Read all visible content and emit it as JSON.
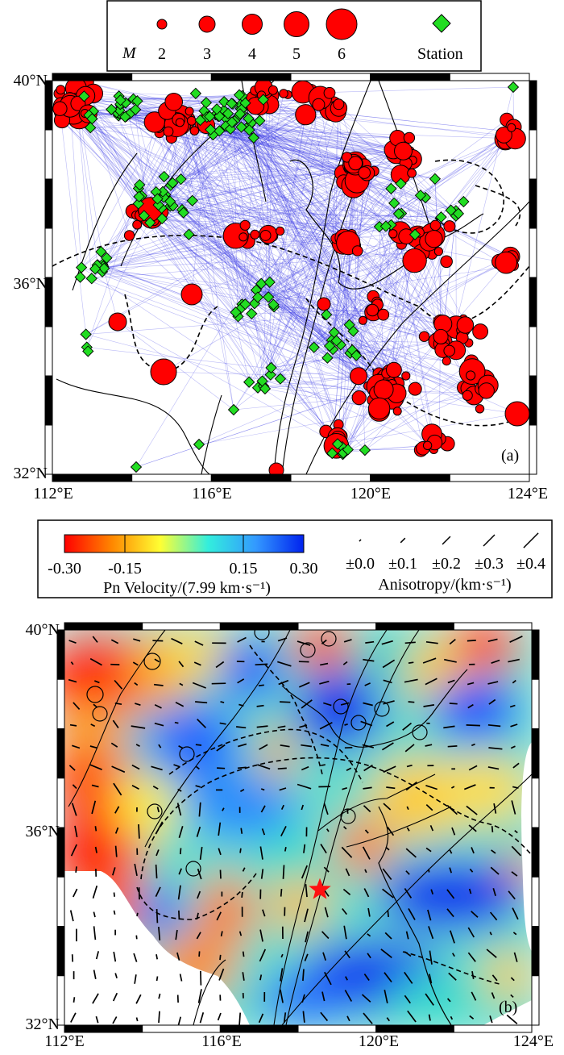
{
  "magnitude_legend": {
    "symbol": "M",
    "labels": [
      "2",
      "3",
      "4",
      "5",
      "6"
    ],
    "station_label": "Station",
    "event_color": "#ff0000",
    "station_color": "#22dd22"
  },
  "panel_a": {
    "tag": "(a)",
    "lat_labels": [
      "40°N",
      "36°N",
      "32°N"
    ],
    "lon_labels": [
      "112°E",
      "116°E",
      "120°E",
      "124°E"
    ],
    "ray_color": "#3a3ae6"
  },
  "velocity_legend": {
    "colorbar_ticks": [
      "-0.30",
      "-0.15",
      "0.15",
      "0.30"
    ],
    "colorbar_colors": [
      "#ff0000",
      "#ff8800",
      "#ffff33",
      "#33eedd",
      "#3399ff",
      "#0022ee"
    ],
    "title": "Pn Velocity/(7.99 km·s⁻¹)"
  },
  "anisotropy_legend": {
    "labels": [
      "±0.0",
      "±0.1",
      "±0.2",
      "±0.3",
      "±0.4"
    ],
    "title": "Anisotropy/(km·s⁻¹)"
  },
  "panel_b": {
    "tag": "(b)",
    "lat_labels": [
      "40°N",
      "36°N",
      "32°N"
    ],
    "lon_labels": [
      "112°E",
      "116°E",
      "120°E",
      "124°E"
    ],
    "star_color": "#ff1111"
  }
}
